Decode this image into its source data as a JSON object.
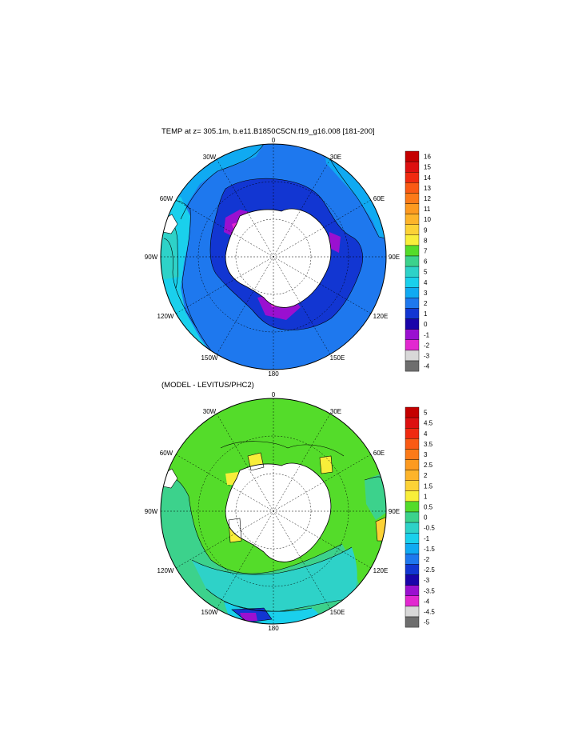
{
  "panels": [
    {
      "title": "TEMP at z= 305.1m, b.e11.B1850C5CN.f19_g16.008 [181-200]",
      "lon_labels": [
        "0",
        "30E",
        "60E",
        "90E",
        "120E",
        "150E",
        "180",
        "150W",
        "120W",
        "90W",
        "60W",
        "30W"
      ],
      "colorbar": {
        "labels": [
          "16",
          "15",
          "14",
          "13",
          "12",
          "11",
          "10",
          "9",
          "8",
          "7",
          "6",
          "5",
          "4",
          "3",
          "2",
          "1",
          "0",
          "-1",
          "-2",
          "-3",
          "-4"
        ],
        "colors": [
          "#c40000",
          "#dd1010",
          "#f02a10",
          "#fa5a14",
          "#fc7a18",
          "#fd9a20",
          "#fdb42a",
          "#fcd236",
          "#f8ee3a",
          "#54dc2a",
          "#3cd28c",
          "#2ed2c8",
          "#1ad0ec",
          "#10aaf2",
          "#1e78ee",
          "#1236d2",
          "#1a04aa",
          "#9a10d0",
          "#e228d0",
          "#d8d8d8",
          "#6e6e6e"
        ]
      }
    },
    {
      "title": "(MODEL - LEVITUS/PHC2)",
      "lon_labels": [
        "0",
        "30E",
        "60E",
        "90E",
        "120E",
        "150E",
        "180",
        "150W",
        "120W",
        "90W",
        "60W",
        "30W"
      ],
      "colorbar": {
        "labels": [
          "5",
          "4.5",
          "4",
          "3.5",
          "3",
          "2.5",
          "2",
          "1.5",
          "1",
          "0.5",
          "0",
          "-0.5",
          "-1",
          "-1.5",
          "-2",
          "-2.5",
          "-3",
          "-3.5",
          "-4",
          "-4.5",
          "-5"
        ],
        "colors": [
          "#c40000",
          "#dd1010",
          "#f02a10",
          "#fa5a14",
          "#fc7a18",
          "#fd9a20",
          "#fdb42a",
          "#fcd236",
          "#f8ee3a",
          "#54dc2a",
          "#3cd28c",
          "#2ed2c8",
          "#1ad0ec",
          "#10aaf2",
          "#1e78ee",
          "#1236d2",
          "#1a04aa",
          "#9a10d0",
          "#e228d0",
          "#d8d8d8",
          "#6e6e6e"
        ]
      }
    }
  ]
}
